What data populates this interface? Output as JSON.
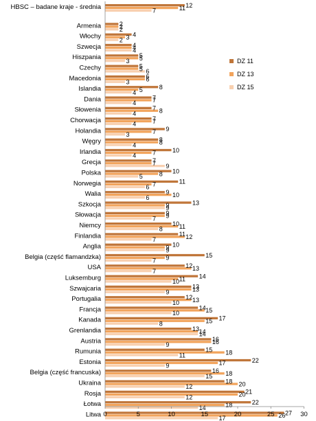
{
  "chart_data": {
    "type": "bar",
    "orientation": "horizontal",
    "categories": [
      "HBSC – badane kraje - średnia",
      "Armenia",
      "Włochy",
      "Szwecja",
      "Hiszpania",
      "Czechy",
      "Macedonia",
      "Islandia",
      "Dania",
      "Słowenia",
      "Chorwacja",
      "Holandia",
      "Węgry",
      "Irlandia",
      "Grecja",
      "Polska",
      "Norwegia",
      "Walia",
      "Szkocja",
      "Słowacja",
      "Niemcy",
      "Finlandia",
      "Anglia",
      "Belgia (część flamandzka)",
      "USA",
      "Luksemburg",
      "Szwajcaria",
      "Portugalia",
      "Francja",
      "Kanada",
      "Grenlandia",
      "Austria",
      "Rumunia",
      "Estonia",
      "Belgia (część francuska)",
      "Ukraina",
      "Rosja",
      "Łotwa",
      "Litwa"
    ],
    "series": [
      {
        "name": "DZ 11",
        "color": "#c0763a",
        "values": [
          12,
          2,
          4,
          4,
          5,
          5,
          6,
          8,
          7,
          7,
          7,
          9,
          8,
          10,
          7,
          10,
          11,
          9,
          13,
          9,
          10,
          11,
          10,
          15,
          12,
          14,
          13,
          12,
          14,
          17,
          13,
          16,
          15,
          22,
          16,
          18,
          21,
          22,
          27
        ]
      },
      {
        "name": "DZ 13",
        "color": "#f2a45c",
        "values": [
          11,
          2,
          3,
          4,
          5,
          5,
          6,
          5,
          7,
          8,
          7,
          7,
          8,
          7,
          7,
          8,
          7,
          10,
          9,
          9,
          11,
          12,
          9,
          9,
          13,
          11,
          13,
          13,
          15,
          15,
          14,
          16,
          18,
          17,
          18,
          20,
          20,
          18,
          26
        ]
      },
      {
        "name": "DZ 15",
        "color": "#f8d0b0",
        "values": [
          7,
          2,
          2,
          4,
          3,
          6,
          3,
          4,
          4,
          4,
          4,
          3,
          4,
          4,
          9,
          5,
          6,
          6,
          9,
          7,
          8,
          7,
          9,
          7,
          7,
          10,
          9,
          10,
          10,
          8,
          14,
          9,
          11,
          9,
          15,
          12,
          12,
          14,
          17
        ]
      }
    ],
    "xlim": [
      0,
      30
    ],
    "xticks": [
      "0",
      "5",
      "10",
      "15",
      "20",
      "25",
      "30"
    ],
    "grid": false,
    "legend_position": "right"
  }
}
